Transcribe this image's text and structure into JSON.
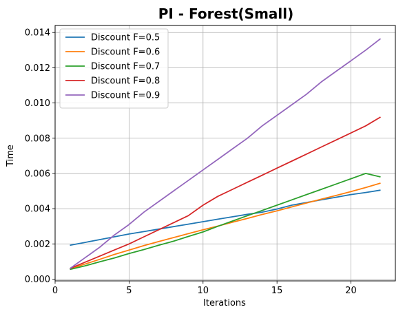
{
  "chart_data": {
    "type": "line",
    "title": "PI - Forest(Small)",
    "xlabel": "Iterations",
    "ylabel": "Time",
    "xlim": [
      0,
      23
    ],
    "ylim": [
      -0.0001,
      0.0144
    ],
    "xticks": [
      0,
      5,
      10,
      15,
      20
    ],
    "xtick_labels": [
      "0",
      "5",
      "10",
      "15",
      "20"
    ],
    "yticks": [
      0.0,
      0.002,
      0.004,
      0.006,
      0.008,
      0.01,
      0.012,
      0.014
    ],
    "ytick_labels": [
      "0.000",
      "0.002",
      "0.004",
      "0.006",
      "0.008",
      "0.010",
      "0.012",
      "0.014"
    ],
    "grid": true,
    "legend_position": "top-left",
    "series": [
      {
        "name": "Discount F=0.5",
        "color": "#1f77b4",
        "x": [
          1,
          2,
          3,
          4,
          5,
          6,
          7,
          8,
          9,
          10,
          11,
          12,
          13,
          14,
          15,
          16,
          17,
          18,
          19,
          20,
          21,
          22
        ],
        "y": [
          0.00192,
          0.00208,
          0.00224,
          0.0024,
          0.00256,
          0.0027,
          0.00284,
          0.00298,
          0.00312,
          0.00326,
          0.0034,
          0.00354,
          0.00368,
          0.0038,
          0.00398,
          0.0042,
          0.00435,
          0.0045,
          0.00465,
          0.0048,
          0.00492,
          0.00505
        ]
      },
      {
        "name": "Discount F=0.6",
        "color": "#ff7f0e",
        "x": [
          1,
          2,
          3,
          4,
          5,
          6,
          7,
          8,
          9,
          10,
          11,
          12,
          13,
          14,
          15,
          16,
          17,
          18,
          19,
          20,
          21,
          22
        ],
        "y": [
          0.00058,
          0.00085,
          0.00112,
          0.0014,
          0.00165,
          0.0019,
          0.00213,
          0.00236,
          0.00258,
          0.0028,
          0.00301,
          0.00323,
          0.00345,
          0.00367,
          0.00388,
          0.0041,
          0.00432,
          0.00454,
          0.00475,
          0.00497,
          0.0052,
          0.00545
        ]
      },
      {
        "name": "Discount F=0.7",
        "color": "#2ca02c",
        "x": [
          1,
          2,
          3,
          4,
          5,
          6,
          7,
          8,
          9,
          10,
          11,
          12,
          13,
          14,
          15,
          16,
          17,
          18,
          19,
          20,
          21,
          22
        ],
        "y": [
          0.00055,
          0.00075,
          0.00098,
          0.0012,
          0.00145,
          0.00168,
          0.00192,
          0.00215,
          0.00242,
          0.00268,
          0.003,
          0.0033,
          0.0036,
          0.0039,
          0.0042,
          0.0045,
          0.0048,
          0.0051,
          0.0054,
          0.0057,
          0.006,
          0.0058
        ]
      },
      {
        "name": "Discount F=0.8",
        "color": "#d62728",
        "x": [
          1,
          2,
          3,
          4,
          5,
          6,
          7,
          8,
          9,
          10,
          11,
          12,
          13,
          14,
          15,
          16,
          17,
          18,
          19,
          20,
          21,
          22
        ],
        "y": [
          0.0006,
          0.00095,
          0.0013,
          0.00165,
          0.002,
          0.0024,
          0.0028,
          0.0032,
          0.0036,
          0.0042,
          0.0047,
          0.0051,
          0.0055,
          0.0059,
          0.0063,
          0.0067,
          0.0071,
          0.0075,
          0.0079,
          0.0083,
          0.0087,
          0.0092
        ]
      },
      {
        "name": "Discount F=0.9",
        "color": "#9467bd",
        "x": [
          1,
          2,
          3,
          4,
          5,
          6,
          7,
          8,
          9,
          10,
          11,
          12,
          13,
          14,
          15,
          16,
          17,
          18,
          19,
          20,
          21,
          22
        ],
        "y": [
          0.0006,
          0.0012,
          0.0018,
          0.0025,
          0.0031,
          0.0038,
          0.0044,
          0.005,
          0.0056,
          0.0062,
          0.0068,
          0.0074,
          0.008,
          0.0087,
          0.0093,
          0.0099,
          0.0105,
          0.0112,
          0.0118,
          0.0124,
          0.013,
          0.01365
        ]
      }
    ]
  }
}
